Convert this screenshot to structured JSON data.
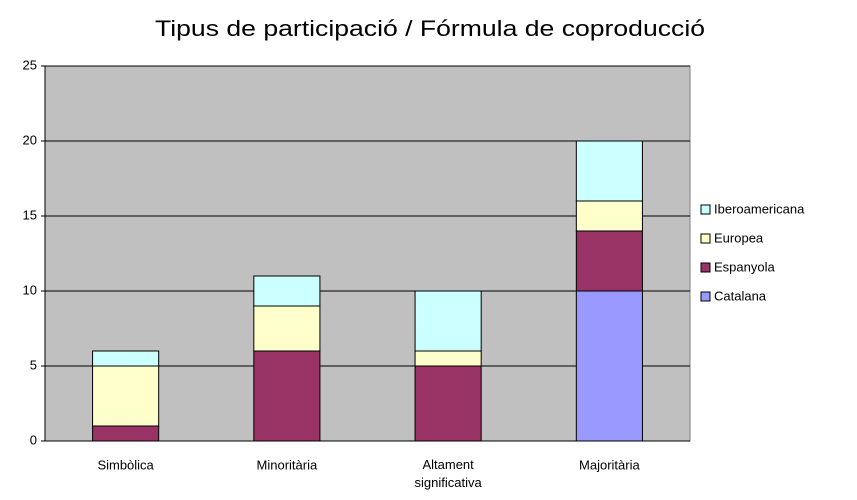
{
  "chart_data": {
    "type": "stacked_bar",
    "title": "Tipus de participació / Fórmula de coproducció",
    "categories": [
      "Simbòlica",
      "Minoritària",
      "Altament significativa",
      "Majoritària"
    ],
    "series": [
      {
        "name": "Catalana",
        "color": "#9999ff",
        "values": [
          0,
          0,
          0,
          10
        ]
      },
      {
        "name": "Espanyola",
        "color": "#993366",
        "values": [
          1,
          6,
          5,
          4
        ]
      },
      {
        "name": "Europea",
        "color": "#ffffcc",
        "values": [
          4,
          3,
          1,
          2
        ]
      },
      {
        "name": "Iberoamericana",
        "color": "#ccffff",
        "values": [
          1,
          2,
          4,
          4
        ]
      }
    ],
    "ylim": [
      0,
      25
    ],
    "yticks": [
      0,
      5,
      10,
      15,
      20,
      25
    ],
    "grid": true,
    "legend": "right"
  }
}
